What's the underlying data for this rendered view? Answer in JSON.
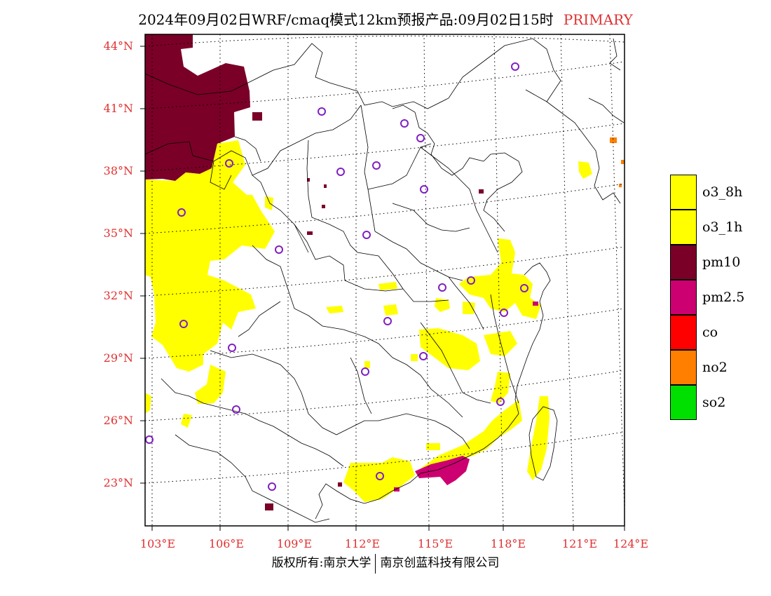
{
  "title": {
    "text": "2024年09月02日WRF/cmaq模式12km预报产品:09月02日15时",
    "tag": "PRIMARY"
  },
  "lat_labels": [
    "44°N",
    "41°N",
    "38°N",
    "35°N",
    "32°N",
    "29°N",
    "26°N",
    "23°N"
  ],
  "lon_labels": [
    "103°E",
    "106°E",
    "109°E",
    "112°E",
    "115°E",
    "118°E",
    "121°E",
    "124°E"
  ],
  "legend": [
    {
      "label": "o3_8h",
      "color": "#ffff00"
    },
    {
      "label": "o3_1h",
      "color": "#ffff00"
    },
    {
      "label": "pm10",
      "color": "#7a0028"
    },
    {
      "label": "pm2.5",
      "color": "#cc0070"
    },
    {
      "label": "co",
      "color": "#ff0000"
    },
    {
      "label": "no2",
      "color": "#ff7f00"
    },
    {
      "label": "so2",
      "color": "#00e000"
    }
  ],
  "footer": {
    "left": "版权所有:南京大学",
    "right": "南京创蓝科技有限公司"
  },
  "colors": {
    "axis_label": "#e03030",
    "pm10": "#7a0028",
    "pm25": "#cc0070",
    "o3": "#ffff00",
    "station": "#8020c0"
  }
}
